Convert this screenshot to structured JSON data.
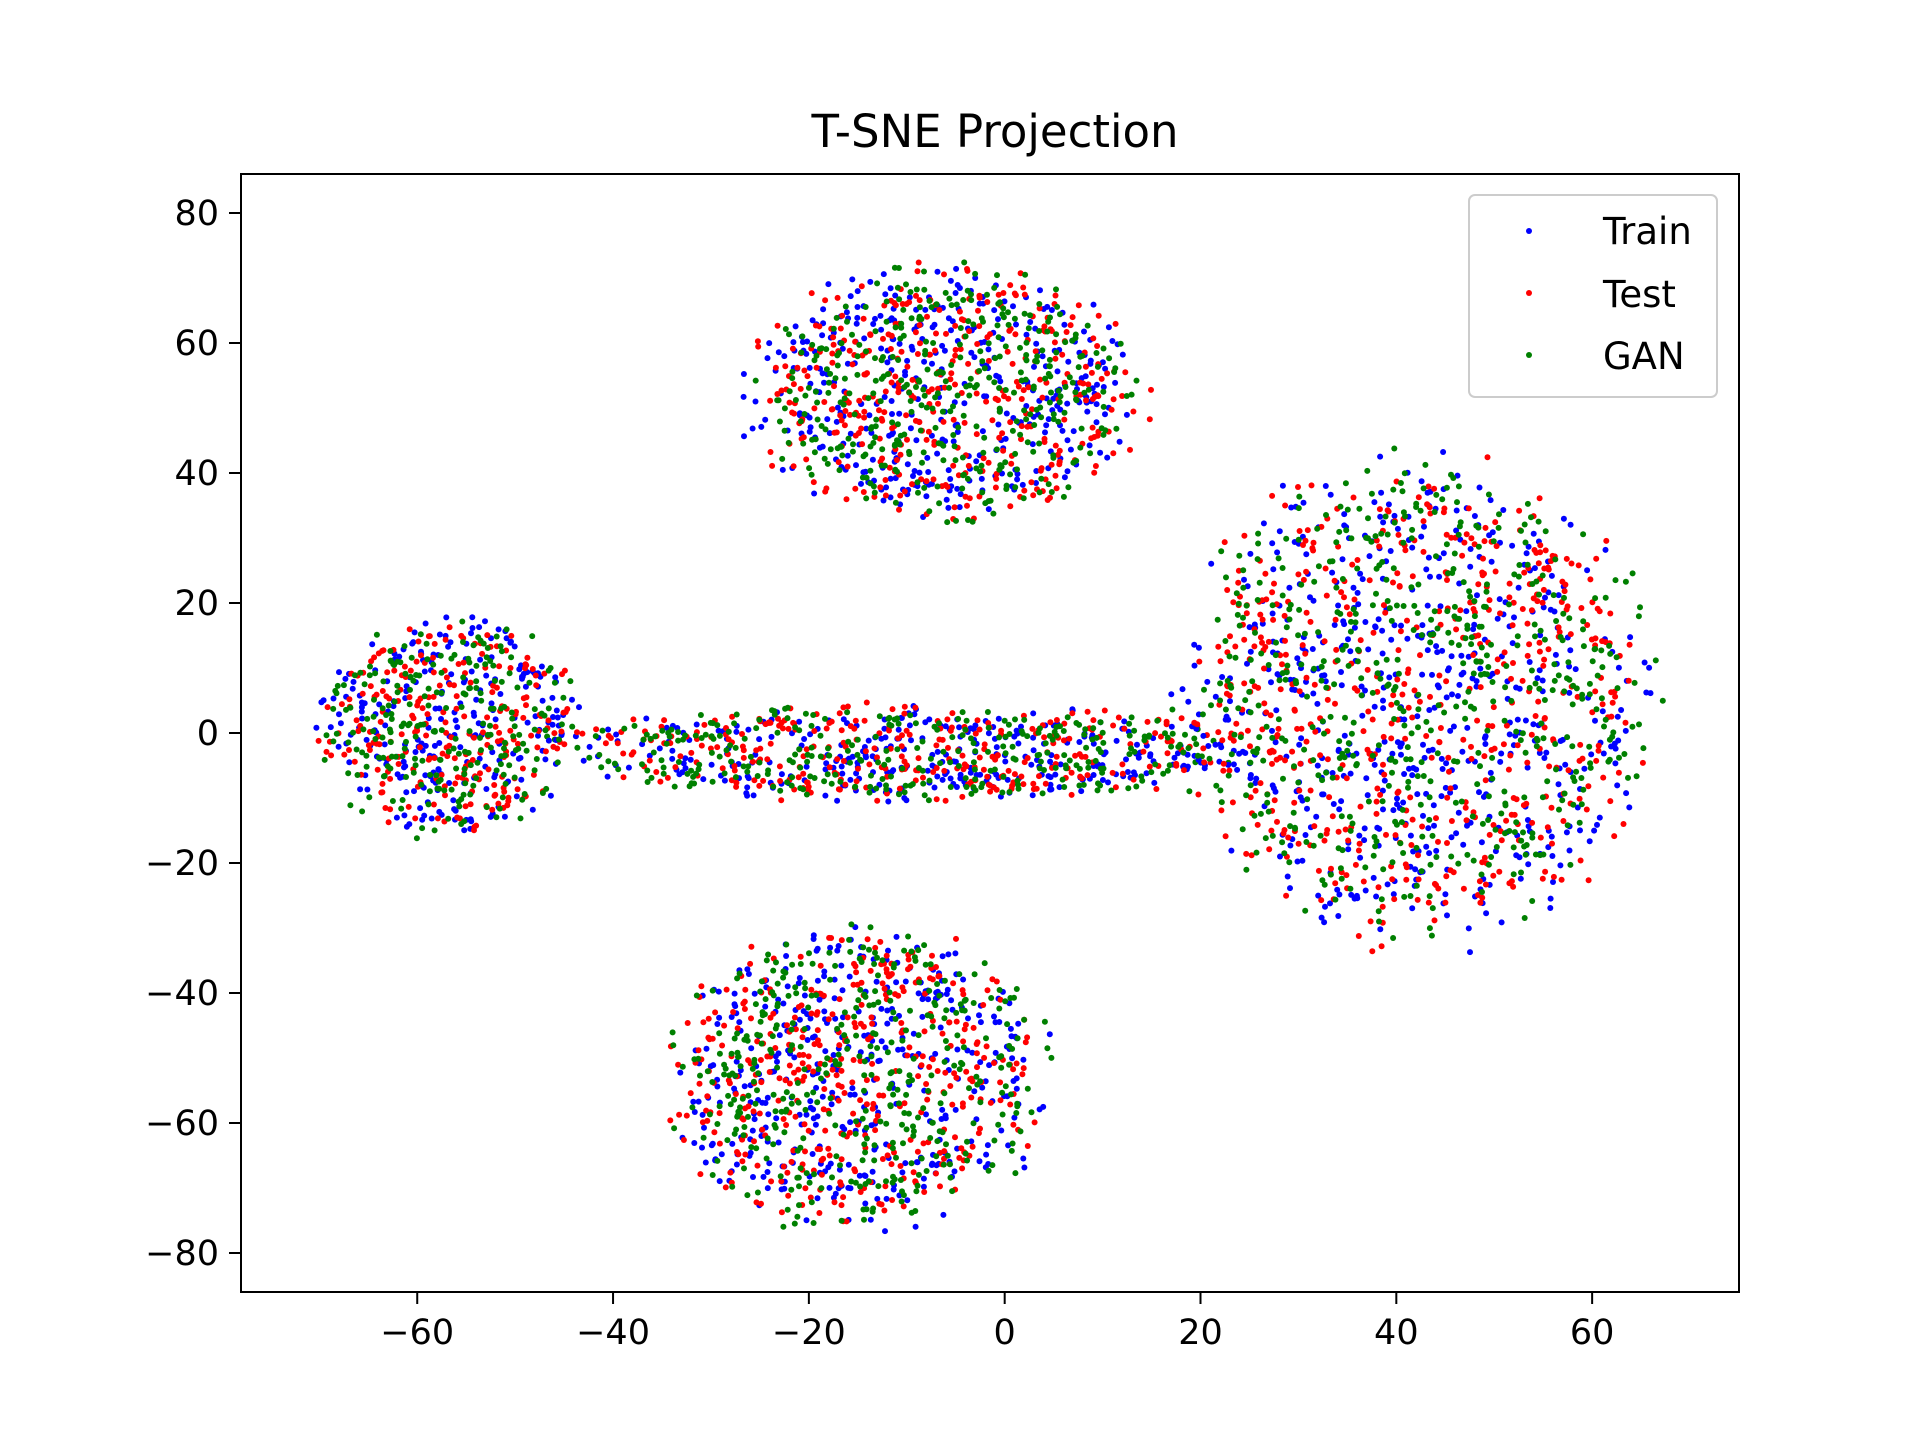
{
  "chart_data": {
    "type": "scatter",
    "title": "T-SNE Projection",
    "xlabel": "",
    "ylabel": "",
    "xlim": [
      -78,
      75
    ],
    "ylim": [
      -86,
      86
    ],
    "xticks": [
      -60,
      -40,
      -20,
      0,
      20,
      40,
      60
    ],
    "yticks": [
      -80,
      -60,
      -40,
      -20,
      0,
      20,
      40,
      60,
      80
    ],
    "xtick_labels": [
      "−60",
      "−40",
      "−20",
      "0",
      "20",
      "40",
      "60"
    ],
    "ytick_labels": [
      "−80",
      "−60",
      "−40",
      "−20",
      "0",
      "20",
      "40",
      "60",
      "80"
    ],
    "grid": false,
    "legend_position": "upper-right",
    "series": [
      {
        "name": "Train",
        "color": "#0000ff"
      },
      {
        "name": "Test",
        "color": "#ff0000"
      },
      {
        "name": "GAN",
        "color": "#008000"
      }
    ],
    "clusters": [
      {
        "label": "top",
        "center": [
          -6,
          52
        ],
        "radius": [
          22,
          21
        ],
        "points_per_series": 380
      },
      {
        "label": "left",
        "center": [
          -57,
          1
        ],
        "radius": [
          14,
          18
        ],
        "points_per_series": 240
      },
      {
        "label": "middle-band",
        "center": [
          -10,
          -3
        ],
        "radius": [
          38,
          8
        ],
        "points_per_series": 310
      },
      {
        "label": "right",
        "center": [
          42,
          5
        ],
        "radius": [
          26,
          40
        ],
        "points_per_series": 560
      },
      {
        "label": "bottom",
        "center": [
          -15,
          -53
        ],
        "radius": [
          21,
          25
        ],
        "points_per_series": 400
      }
    ]
  }
}
